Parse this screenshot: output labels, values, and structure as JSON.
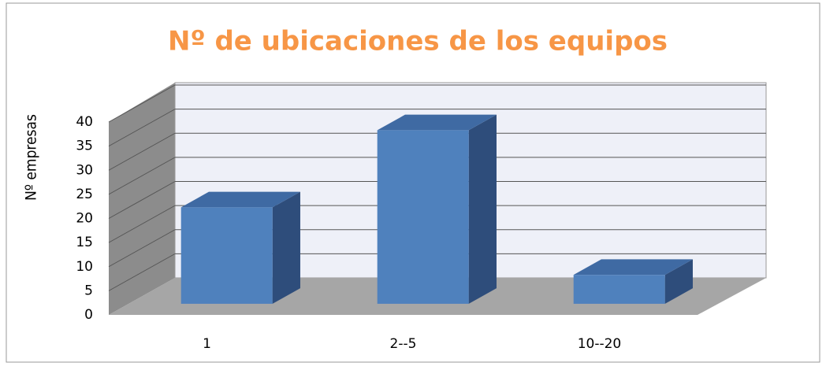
{
  "chart_data": {
    "type": "bar3d",
    "title": "Nº de ubicaciones de los equipos",
    "y_label": "Nº empresas",
    "categories": [
      "1",
      "2--5",
      "10--20"
    ],
    "values": [
      20,
      36,
      6
    ],
    "color": "#4f81bd",
    "ylim": [
      0,
      40
    ],
    "yticks": [
      0,
      5,
      10,
      15,
      20,
      25,
      30,
      35,
      40
    ],
    "grid": true
  }
}
